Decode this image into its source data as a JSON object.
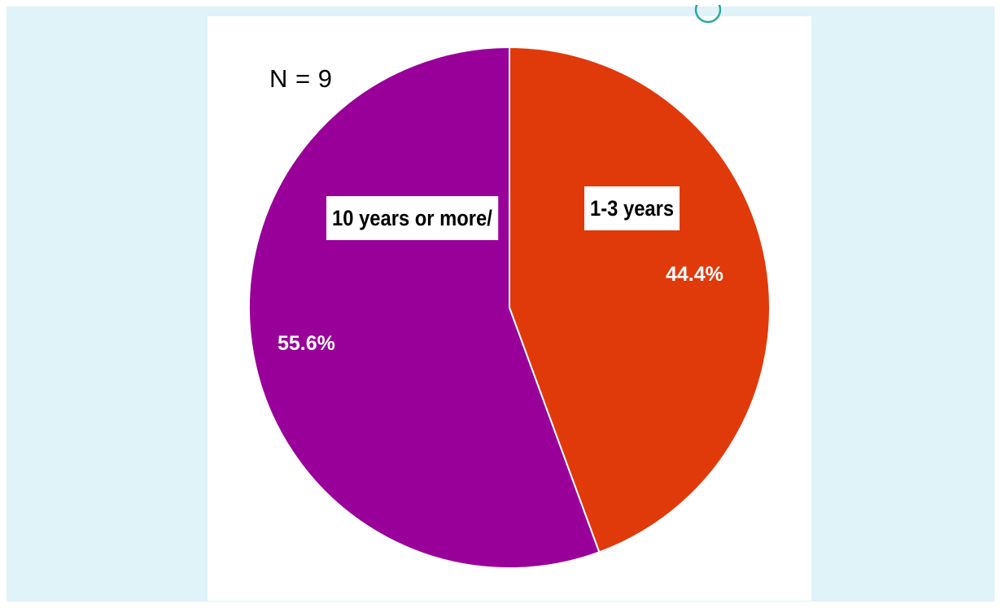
{
  "chart_data": {
    "type": "pie",
    "annotation": "N = 9",
    "categories": [
      "1-3 years",
      "10 years or more/"
    ],
    "values": [
      44.4,
      55.6
    ],
    "value_labels": [
      "44.4%",
      "55.6%"
    ],
    "colors": [
      "#e03a0b",
      "#990099"
    ],
    "start_angle": "12 o'clock",
    "direction": "clockwise",
    "legend": "none"
  }
}
